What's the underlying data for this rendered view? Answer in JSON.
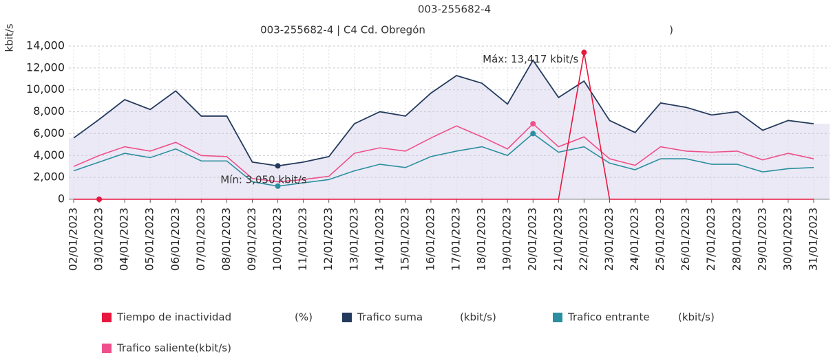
{
  "chart_data": {
    "type": "line",
    "title": "003-255682-4",
    "subtitle": "003-255682-4 | C4 Cd. Obregón",
    "subtitle_tail": ")",
    "y_label": "kbit/s",
    "categories": [
      "02/01/2023",
      "03/01/2023",
      "04/01/2023",
      "05/01/2023",
      "06/01/2023",
      "07/01/2023",
      "08/01/2023",
      "09/01/2023",
      "10/01/2023",
      "11/01/2023",
      "12/01/2023",
      "13/01/2023",
      "14/01/2023",
      "15/01/2023",
      "16/01/2023",
      "17/01/2023",
      "18/01/2023",
      "19/01/2023",
      "20/01/2023",
      "21/01/2023",
      "22/01/2023",
      "23/01/2023",
      "24/01/2023",
      "25/01/2023",
      "26/01/2023",
      "27/01/2023",
      "28/01/2023",
      "29/01/2023",
      "30/01/2023",
      "31/01/2023"
    ],
    "series": [
      {
        "name": "Tiempo de inactividad",
        "unit": "(%)",
        "color": "#e8173f",
        "values": [
          0,
          0,
          0,
          0,
          0,
          0,
          0,
          0,
          0,
          0,
          0,
          0,
          0,
          0,
          0,
          0,
          0,
          0,
          0,
          0,
          13417,
          0,
          0,
          0,
          0,
          0,
          0,
          0,
          0,
          0
        ]
      },
      {
        "name": "Trafico suma",
        "unit": "(kbit/s)",
        "color": "#243a5c",
        "values": [
          5600,
          7300,
          9100,
          8200,
          9900,
          7600,
          7600,
          3400,
          3050,
          3400,
          3900,
          6900,
          8000,
          7600,
          9700,
          11300,
          10600,
          8700,
          12700,
          9300,
          10800,
          7200,
          6100,
          8800,
          8400,
          7700,
          8000,
          6300,
          7200,
          6900
        ]
      },
      {
        "name": "Trafico entrante",
        "unit": "(kbit/s)",
        "color": "#2a8fa0",
        "values": [
          2600,
          3400,
          4200,
          3800,
          4600,
          3500,
          3500,
          1600,
          1200,
          1500,
          1800,
          2600,
          3200,
          2900,
          3900,
          4400,
          4800,
          4000,
          6000,
          4300,
          4800,
          3300,
          2700,
          3700,
          3700,
          3200,
          3200,
          2500,
          2800,
          2900
        ]
      },
      {
        "name": "Trafico saliente(kbit/s)",
        "color": "#ef4f8a",
        "values": [
          3000,
          4000,
          4800,
          4400,
          5200,
          4000,
          3900,
          1900,
          1600,
          1800,
          2100,
          4200,
          4700,
          4400,
          5600,
          6700,
          5700,
          4600,
          6900,
          4800,
          5700,
          3700,
          3100,
          4800,
          4400,
          4300,
          4400,
          3600,
          4200,
          3700
        ]
      }
    ],
    "ylim": [
      0,
      14000
    ],
    "yticks": [
      0,
      {
        "value": 2000,
        "label": "2,000"
      },
      {
        "value": 4000,
        "label": "4,000"
      },
      {
        "value": 6000,
        "label": "6,000"
      },
      {
        "value": 8000,
        "label": "8,000"
      },
      {
        "value": 10000,
        "label": "10,000"
      },
      {
        "value": 12000,
        "label": "12,000"
      },
      {
        "value": 14000,
        "label": "14,000"
      }
    ],
    "grid": true,
    "annotations": [
      {
        "text": "Máx: 13,417 kbit/s",
        "series": 0,
        "index": 20
      },
      {
        "text": "Mín: 3,050 kbit/s",
        "series": 1,
        "index": 8
      }
    ]
  }
}
